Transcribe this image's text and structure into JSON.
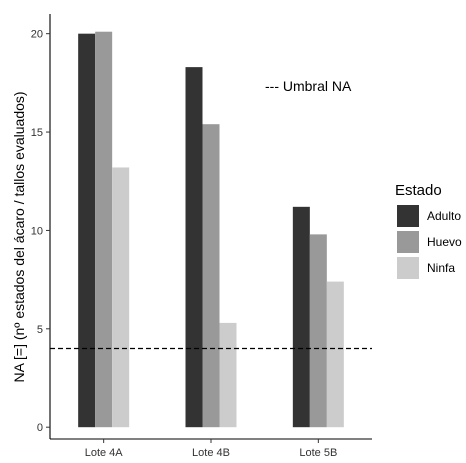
{
  "chart_data": {
    "type": "bar",
    "title": "",
    "xlabel": "",
    "ylabel": "NA [=] (nº estados del ácaro / tallos evaluados)",
    "categories": [
      "Lote 4A",
      "Lote 4B",
      "Lote 5B"
    ],
    "series": [
      {
        "name": "Adulto",
        "values": [
          20.0,
          18.3,
          11.2
        ],
        "color": "#333333"
      },
      {
        "name": "Huevo",
        "values": [
          20.1,
          15.4,
          9.8
        ],
        "color": "#999999"
      },
      {
        "name": "Ninfa",
        "values": [
          13.2,
          5.3,
          7.4
        ],
        "color": "#cccccc"
      }
    ],
    "ylim": [
      -0.6,
      21.0
    ],
    "yticks": [
      0,
      5,
      10,
      15,
      20
    ],
    "ytick_labels": [
      "0",
      "5",
      "10",
      "15",
      "20"
    ],
    "grid": false,
    "legend": {
      "title": "Estado",
      "position": "right"
    },
    "threshold": {
      "value": 4.0,
      "label": "--- Umbral NA",
      "style": "dashed"
    }
  }
}
